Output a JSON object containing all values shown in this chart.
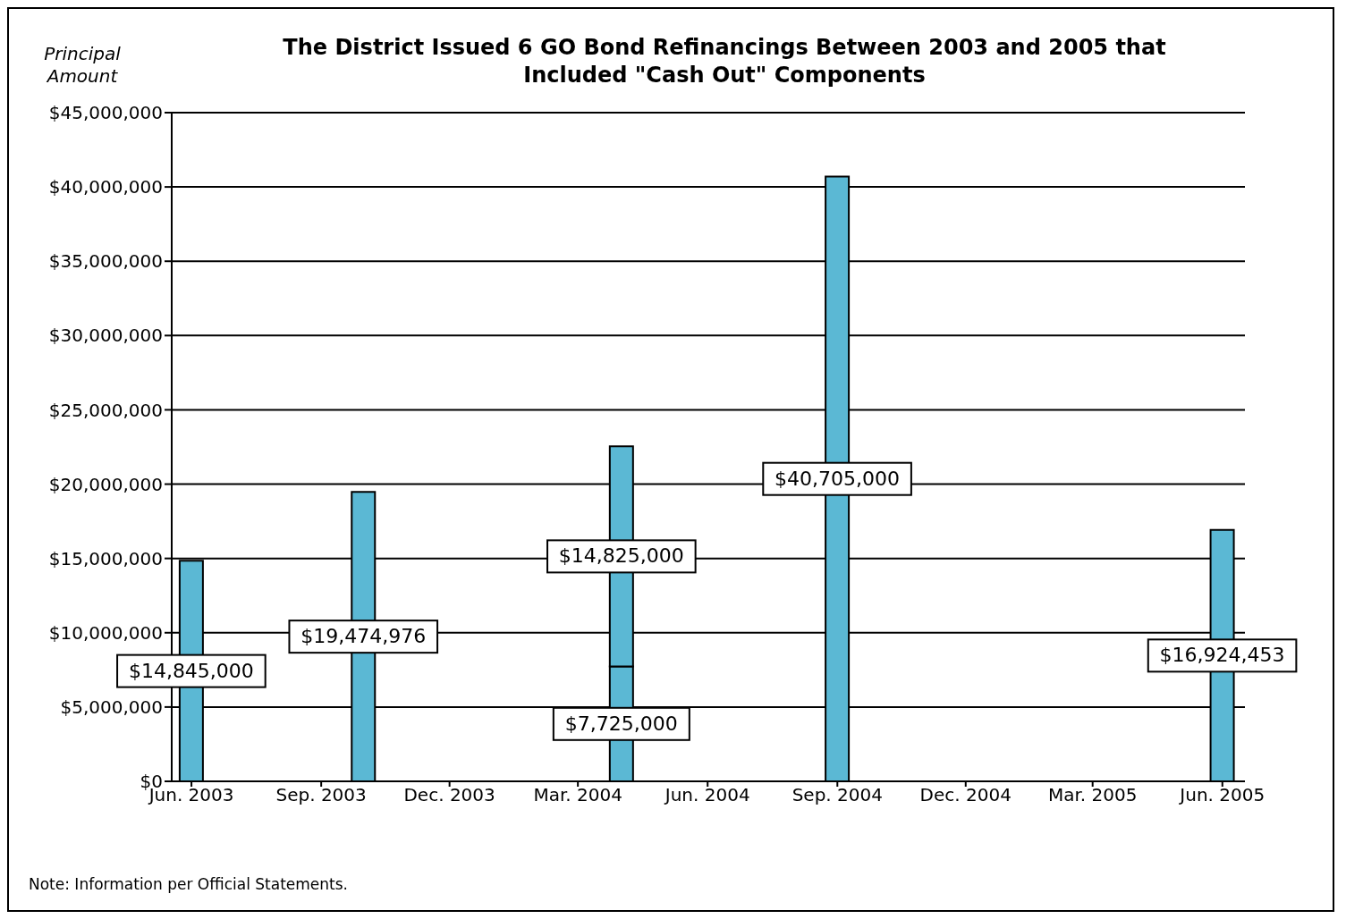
{
  "chart_data": {
    "type": "bar",
    "title": "The District Issued 6 GO Bond Refinancings Between 2003 and 2005 that Included \"Cash Out\" Components",
    "ylabel": "Principal Amount",
    "annotations": [
      "Note: Information per Official Statements."
    ],
    "x": [
      "2003-06-15",
      "2003-10-15",
      "2004-04-15",
      "2004-09-15",
      "2005-06-15"
    ],
    "series": [
      {
        "color": "#5bb8d4",
        "values": [
          14845000,
          19474976,
          7725000,
          40705000,
          16924453
        ],
        "value_labels": [
          "$14,845,000",
          "$19,474,976",
          "$7,725,000",
          "$40,705,000",
          "$16,924,453"
        ]
      },
      {
        "color": "#5bb8d4",
        "values": [
          null,
          null,
          14825000,
          null,
          null
        ],
        "value_labels": [
          null,
          null,
          "$14,825,000",
          null,
          null
        ]
      }
    ],
    "stacked": true,
    "xlim": [
      "2003-06-01",
      "2005-07-01"
    ],
    "xticks": [
      {
        "value": "2003-06-15",
        "label": "Jun. 2003"
      },
      {
        "value": "2003-09-15",
        "label": "Sep. 2003"
      },
      {
        "value": "2003-12-15",
        "label": "Dec. 2003"
      },
      {
        "value": "2004-03-15",
        "label": "Mar. 2004"
      },
      {
        "value": "2004-06-15",
        "label": "Jun. 2004"
      },
      {
        "value": "2004-09-15",
        "label": "Sep. 2004"
      },
      {
        "value": "2004-12-15",
        "label": "Dec. 2004"
      },
      {
        "value": "2005-03-15",
        "label": "Mar. 2005"
      },
      {
        "value": "2005-06-15",
        "label": "Jun. 2005"
      }
    ],
    "ylim": [
      0,
      45000000
    ],
    "yticks": [
      {
        "value": 0,
        "label": "$0"
      },
      {
        "value": 5000000,
        "label": "$5,000,000"
      },
      {
        "value": 10000000,
        "label": "$10,000,000"
      },
      {
        "value": 15000000,
        "label": "$15,000,000"
      },
      {
        "value": 20000000,
        "label": "$20,000,000"
      },
      {
        "value": 25000000,
        "label": "$25,000,000"
      },
      {
        "value": 30000000,
        "label": "$30,000,000"
      },
      {
        "value": 35000000,
        "label": "$35,000,000"
      },
      {
        "value": 40000000,
        "label": "$40,000,000"
      },
      {
        "value": 45000000,
        "label": "$45,000,000"
      }
    ],
    "grid": "y",
    "legend": false
  }
}
